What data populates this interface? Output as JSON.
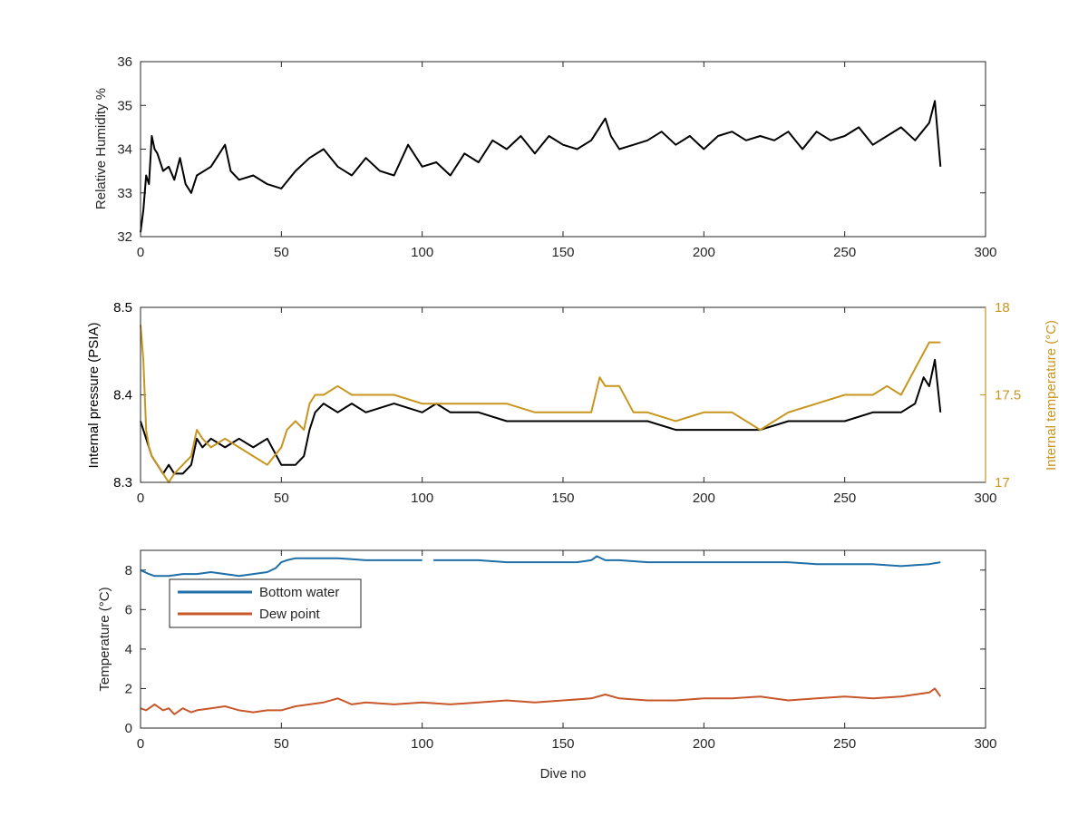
{
  "figure": {
    "colors": {
      "black": "#000000",
      "temp_gold": "#C8961E",
      "bottom_water": "#1F6FA8",
      "dew_point": "#C8572A"
    }
  },
  "chart_data": [
    {
      "type": "line",
      "id": "humidity",
      "title": "",
      "xlabel": "",
      "ylabel": "Relative Humidity %",
      "xlim": [
        0,
        300
      ],
      "ylim": [
        32,
        36
      ],
      "xticks": [
        0,
        50,
        100,
        150,
        200,
        250,
        300
      ],
      "yticks": [
        32,
        33,
        34,
        35,
        36
      ],
      "grid": false,
      "series": [
        {
          "color": "#000000",
          "x": [
            0,
            1,
            2,
            3,
            4,
            5,
            6,
            8,
            10,
            12,
            14,
            16,
            18,
            20,
            25,
            30,
            32,
            35,
            40,
            45,
            50,
            55,
            60,
            65,
            70,
            75,
            80,
            85,
            90,
            95,
            100,
            105,
            110,
            115,
            120,
            125,
            130,
            135,
            140,
            145,
            150,
            155,
            160,
            165,
            167,
            170,
            175,
            180,
            185,
            190,
            195,
            200,
            205,
            210,
            215,
            220,
            225,
            230,
            235,
            240,
            245,
            250,
            255,
            260,
            265,
            270,
            275,
            280,
            282,
            284
          ],
          "y": [
            32.1,
            32.6,
            33.4,
            33.2,
            34.3,
            34.0,
            33.9,
            33.5,
            33.6,
            33.3,
            33.8,
            33.2,
            33.0,
            33.4,
            33.6,
            34.1,
            33.5,
            33.3,
            33.4,
            33.2,
            33.1,
            33.5,
            33.8,
            34.0,
            33.6,
            33.4,
            33.8,
            33.5,
            33.4,
            34.1,
            33.6,
            33.7,
            33.4,
            33.9,
            33.7,
            34.2,
            34.0,
            34.3,
            33.9,
            34.3,
            34.1,
            34.0,
            34.2,
            34.7,
            34.3,
            34.0,
            34.1,
            34.2,
            34.4,
            34.1,
            34.3,
            34.0,
            34.3,
            34.4,
            34.2,
            34.3,
            34.2,
            34.4,
            34.0,
            34.4,
            34.2,
            34.3,
            34.5,
            34.1,
            34.3,
            34.5,
            34.2,
            34.6,
            35.1,
            33.6
          ]
        }
      ]
    },
    {
      "type": "line",
      "id": "pressure",
      "title": "",
      "xlabel": "",
      "ylabel": "Internal pressure (PSIA)",
      "ylabel_right": "Internal temperature (°C)",
      "xlim": [
        0,
        300
      ],
      "ylim": [
        8.3,
        8.5
      ],
      "ylim_right": [
        17,
        18
      ],
      "xticks": [
        0,
        50,
        100,
        150,
        200,
        250,
        300
      ],
      "yticks": [
        8.3,
        8.4,
        8.5
      ],
      "yticks_right": [
        17,
        17.5,
        18
      ],
      "grid": false,
      "series": [
        {
          "color": "#000000",
          "axis": "left",
          "x": [
            0,
            2,
            4,
            6,
            8,
            10,
            12,
            15,
            18,
            20,
            22,
            25,
            30,
            35,
            40,
            45,
            50,
            55,
            58,
            60,
            62,
            65,
            70,
            75,
            80,
            90,
            100,
            105,
            110,
            120,
            130,
            140,
            150,
            160,
            170,
            180,
            190,
            200,
            210,
            220,
            230,
            240,
            250,
            260,
            270,
            275,
            278,
            280,
            282,
            284
          ],
          "y": [
            8.37,
            8.35,
            8.33,
            8.32,
            8.31,
            8.32,
            8.31,
            8.31,
            8.32,
            8.35,
            8.34,
            8.35,
            8.34,
            8.35,
            8.34,
            8.35,
            8.32,
            8.32,
            8.33,
            8.36,
            8.38,
            8.39,
            8.38,
            8.39,
            8.38,
            8.39,
            8.38,
            8.39,
            8.38,
            8.38,
            8.37,
            8.37,
            8.37,
            8.37,
            8.37,
            8.37,
            8.36,
            8.36,
            8.36,
            8.36,
            8.37,
            8.37,
            8.37,
            8.38,
            8.38,
            8.39,
            8.42,
            8.41,
            8.44,
            8.38
          ]
        },
        {
          "color": "#C8961E",
          "axis": "right",
          "x": [
            0,
            1,
            2,
            3,
            4,
            6,
            8,
            10,
            12,
            15,
            18,
            20,
            22,
            25,
            30,
            35,
            40,
            45,
            50,
            52,
            55,
            58,
            60,
            62,
            65,
            70,
            75,
            80,
            90,
            100,
            110,
            120,
            130,
            140,
            150,
            160,
            163,
            165,
            170,
            175,
            180,
            190,
            200,
            210,
            220,
            225,
            230,
            240,
            250,
            260,
            265,
            270,
            275,
            280,
            284
          ],
          "y": [
            17.9,
            17.7,
            17.3,
            17.2,
            17.15,
            17.1,
            17.05,
            17.0,
            17.05,
            17.1,
            17.15,
            17.3,
            17.25,
            17.2,
            17.25,
            17.2,
            17.15,
            17.1,
            17.2,
            17.3,
            17.35,
            17.3,
            17.45,
            17.5,
            17.5,
            17.55,
            17.5,
            17.5,
            17.5,
            17.45,
            17.45,
            17.45,
            17.45,
            17.4,
            17.4,
            17.4,
            17.6,
            17.55,
            17.55,
            17.4,
            17.4,
            17.35,
            17.4,
            17.4,
            17.3,
            17.35,
            17.4,
            17.45,
            17.5,
            17.5,
            17.55,
            17.5,
            17.65,
            17.8,
            17.8
          ]
        }
      ]
    },
    {
      "type": "line",
      "id": "temperature",
      "title": "",
      "xlabel": "Dive no",
      "ylabel": "Temperature (°C)",
      "xlim": [
        0,
        300
      ],
      "ylim": [
        0,
        9
      ],
      "xticks": [
        0,
        50,
        100,
        150,
        200,
        250,
        300
      ],
      "yticks": [
        0,
        2,
        4,
        6,
        8
      ],
      "grid": false,
      "legend": "top-left",
      "series": [
        {
          "name": "Bottom water",
          "color": "#1F6FA8",
          "x": [
            0,
            3,
            5,
            10,
            15,
            20,
            25,
            30,
            35,
            40,
            45,
            48,
            50,
            52,
            55,
            60,
            70,
            80,
            90,
            100,
            102,
            104,
            110,
            120,
            130,
            140,
            150,
            155,
            160,
            162,
            165,
            170,
            180,
            190,
            200,
            210,
            220,
            230,
            240,
            250,
            260,
            270,
            280,
            284
          ],
          "y": [
            8.0,
            7.8,
            7.7,
            7.7,
            7.8,
            7.8,
            7.9,
            7.8,
            7.7,
            7.8,
            7.9,
            8.1,
            8.4,
            8.5,
            8.6,
            8.6,
            8.6,
            8.5,
            8.5,
            8.5,
            null,
            8.5,
            8.5,
            8.5,
            8.4,
            8.4,
            8.4,
            8.4,
            8.5,
            8.7,
            8.5,
            8.5,
            8.4,
            8.4,
            8.4,
            8.4,
            8.4,
            8.4,
            8.3,
            8.3,
            8.3,
            8.2,
            8.3,
            8.4
          ]
        },
        {
          "name": "Dew point",
          "color": "#C8572A",
          "x": [
            0,
            2,
            5,
            8,
            10,
            12,
            15,
            18,
            20,
            25,
            30,
            35,
            40,
            45,
            50,
            55,
            60,
            65,
            70,
            75,
            80,
            90,
            100,
            110,
            120,
            130,
            140,
            150,
            160,
            165,
            170,
            180,
            190,
            200,
            210,
            220,
            230,
            240,
            250,
            260,
            270,
            275,
            280,
            282,
            284
          ],
          "y": [
            1.0,
            0.9,
            1.2,
            0.9,
            1.0,
            0.7,
            1.0,
            0.8,
            0.9,
            1.0,
            1.1,
            0.9,
            0.8,
            0.9,
            0.9,
            1.1,
            1.2,
            1.3,
            1.5,
            1.2,
            1.3,
            1.2,
            1.3,
            1.2,
            1.3,
            1.4,
            1.3,
            1.4,
            1.5,
            1.7,
            1.5,
            1.4,
            1.4,
            1.5,
            1.5,
            1.6,
            1.4,
            1.5,
            1.6,
            1.5,
            1.6,
            1.7,
            1.8,
            2.0,
            1.6
          ]
        }
      ]
    }
  ]
}
